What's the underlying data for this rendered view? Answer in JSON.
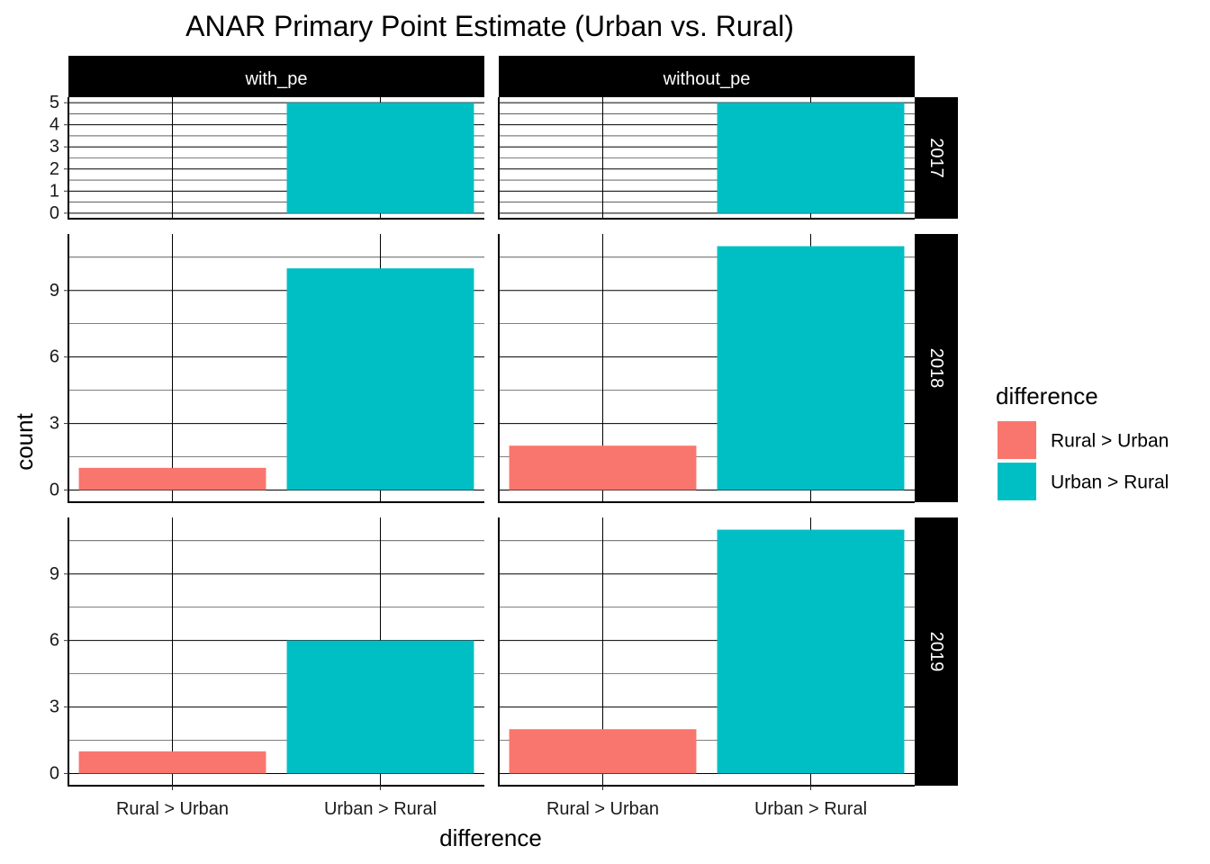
{
  "chart_data": {
    "type": "bar",
    "title": "ANAR Primary Point Estimate (Urban vs. Rural)",
    "xlabel": "difference",
    "ylabel": "count",
    "categories": [
      "Rural >  Urban",
      "Urban > Rural"
    ],
    "facet_columns": [
      "with_pe",
      "without_pe"
    ],
    "facet_rows": [
      "2017",
      "2018",
      "2019"
    ],
    "legend": {
      "title": "difference",
      "position": "right",
      "items": [
        {
          "label": "Rural >  Urban",
          "color": "#F8766D"
        },
        {
          "label": "Urban > Rural",
          "color": "#00BFC4"
        }
      ]
    },
    "colors": {
      "Rural >  Urban": "#F8766D",
      "Urban > Rural": "#00BFC4"
    },
    "grid": true,
    "panels": [
      {
        "row": "2017",
        "col": "with_pe",
        "values": [
          0,
          5
        ],
        "ylim": [
          -0.25,
          5.25
        ],
        "yticks": [
          0,
          1,
          2,
          3,
          4,
          5
        ]
      },
      {
        "row": "2017",
        "col": "without_pe",
        "values": [
          0,
          5
        ],
        "ylim": [
          -0.25,
          5.25
        ],
        "yticks": [
          0,
          1,
          2,
          3,
          4,
          5
        ]
      },
      {
        "row": "2018",
        "col": "with_pe",
        "values": [
          1,
          10
        ],
        "ylim": [
          -0.55,
          11.55
        ],
        "yticks": [
          0,
          3,
          6,
          9
        ]
      },
      {
        "row": "2018",
        "col": "without_pe",
        "values": [
          2,
          11
        ],
        "ylim": [
          -0.55,
          11.55
        ],
        "yticks": [
          0,
          3,
          6,
          9
        ]
      },
      {
        "row": "2019",
        "col": "with_pe",
        "values": [
          1,
          6
        ],
        "ylim": [
          -0.55,
          11.55
        ],
        "yticks": [
          0,
          3,
          6,
          9
        ]
      },
      {
        "row": "2019",
        "col": "without_pe",
        "values": [
          2,
          11
        ],
        "ylim": [
          -0.55,
          11.55
        ],
        "yticks": [
          0,
          3,
          6,
          9
        ]
      }
    ]
  }
}
